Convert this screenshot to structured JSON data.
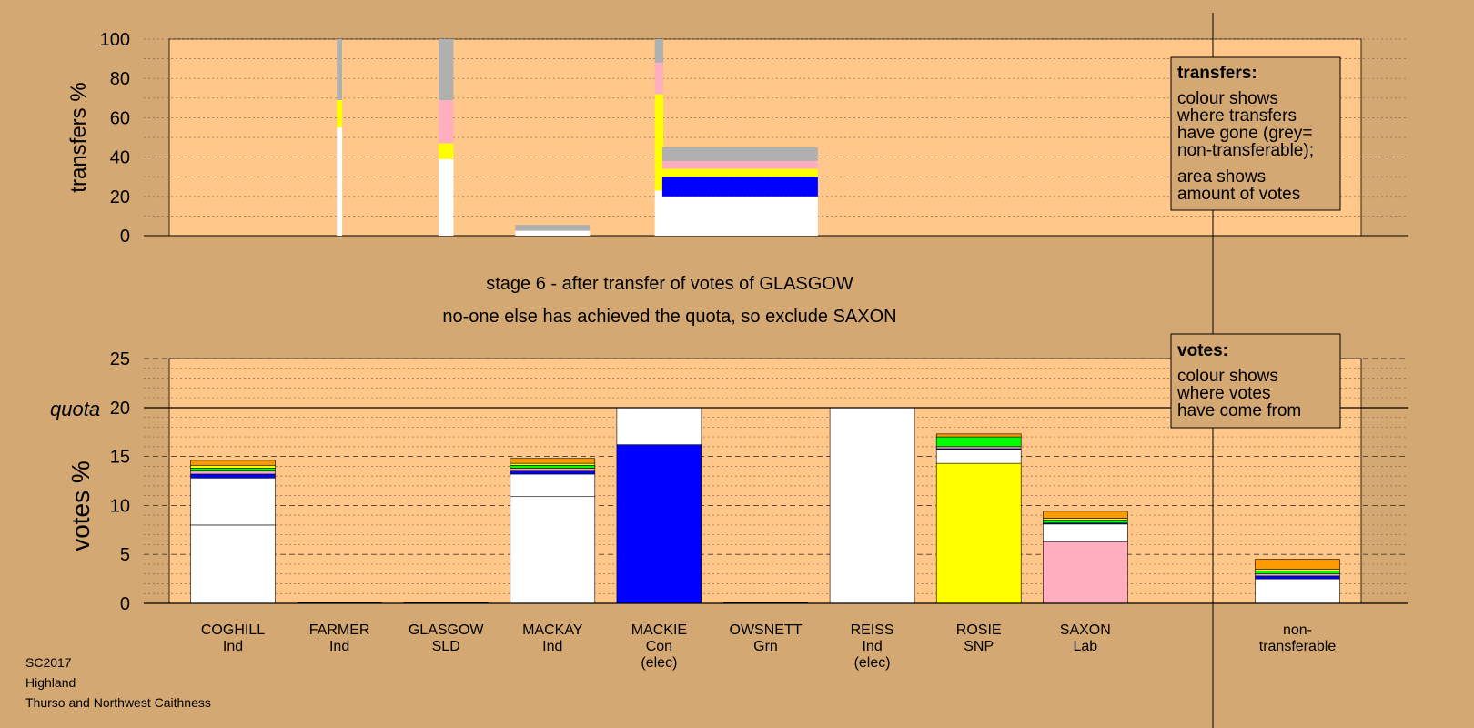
{
  "caption": {
    "line1": "stage 6 - after transfer of votes of GLASGOW",
    "line2": "no-one else has achieved the quota, so exclude SAXON"
  },
  "footer": {
    "line1": "SC2017",
    "line2": "Highland",
    "line3": "Thurso and Northwest Caithness"
  },
  "legend_transfers": {
    "title": "transfers:",
    "lines": [
      "colour shows",
      "where transfers",
      "have gone (grey=",
      "non-transferable);",
      "area shows",
      "amount of votes"
    ]
  },
  "legend_votes": {
    "title": "votes:",
    "lines": [
      "colour shows",
      "where votes",
      "have come from"
    ]
  },
  "colors": {
    "background": "#d4a873",
    "plot_background": "#ffc88a",
    "Ind": "#ffffff",
    "Con": "#0000ff",
    "SNP": "#ffff00",
    "Lab": "#ffaec0",
    "Grn": "#00ff00",
    "SLD": "#ff9900",
    "nontransferable": "#b0b0b0"
  },
  "chart_data": [
    {
      "type": "bar",
      "id": "transfers",
      "ylabel": "transfers %",
      "ylim": [
        0,
        100
      ],
      "yticks": [
        0,
        20,
        40,
        60,
        80,
        100
      ],
      "grid": true,
      "columns": [
        {
          "name": "COGHILL",
          "center": 1,
          "width": 0.05,
          "segments": [
            {
              "party": "Ind",
              "value": 55
            },
            {
              "party": "SNP",
              "value": 14
            },
            {
              "party": "nontransferable",
              "value": 31
            }
          ]
        },
        {
          "name": "FARMER",
          "center": 2,
          "width": 0.14,
          "segments": [
            {
              "party": "Ind",
              "value": 39
            },
            {
              "party": "SNP",
              "value": 8
            },
            {
              "party": "Lab",
              "value": 22
            },
            {
              "party": "nontransferable",
              "value": 31
            }
          ]
        },
        {
          "name": "GLASGOW",
          "center": 3,
          "width": 0.7,
          "segments": [
            {
              "party": "Ind",
              "value": 2.5
            },
            {
              "party": "nontransferable",
              "value": 3
            }
          ]
        },
        {
          "name": "MACKAY",
          "center": 4,
          "width": 0.08,
          "segments": [
            {
              "party": "Ind",
              "value": 23
            },
            {
              "party": "SNP",
              "value": 49
            },
            {
              "party": "Lab",
              "value": 16
            },
            {
              "party": "nontransferable",
              "value": 12
            }
          ]
        },
        {
          "name": "MACKIE",
          "center": 4.76,
          "width": 1.46,
          "segments": [
            {
              "party": "Ind",
              "value": 20
            },
            {
              "party": "Con",
              "value": 10
            },
            {
              "party": "SNP",
              "value": 4
            },
            {
              "party": "Lab",
              "value": 4
            },
            {
              "party": "nontransferable",
              "value": 7
            }
          ]
        }
      ]
    },
    {
      "type": "bar",
      "id": "votes",
      "ylabel": "votes %",
      "ylim": [
        0,
        25
      ],
      "yticks": [
        0,
        5,
        10,
        15,
        20,
        25
      ],
      "quota": 20,
      "quota_label": "quota",
      "grid": true,
      "categories": [
        {
          "name": "COGHILL",
          "party": "Ind",
          "elec": ""
        },
        {
          "name": "FARMER",
          "party": "Ind",
          "elec": ""
        },
        {
          "name": "GLASGOW",
          "party": "SLD",
          "elec": ""
        },
        {
          "name": "MACKAY",
          "party": "Ind",
          "elec": ""
        },
        {
          "name": "MACKIE",
          "party": "Con",
          "elec": "(elec)"
        },
        {
          "name": "OWSNETT",
          "party": "Grn",
          "elec": ""
        },
        {
          "name": "REISS",
          "party": "Ind",
          "elec": "(elec)"
        },
        {
          "name": "ROSIE",
          "party": "SNP",
          "elec": ""
        },
        {
          "name": "SAXON",
          "party": "Lab",
          "elec": ""
        },
        {
          "name": "non-",
          "party": "transferable",
          "elec": ""
        }
      ],
      "bars": [
        {
          "index": 0,
          "segments": [
            {
              "party": "Ind",
              "value": 8
            },
            {
              "party": "Ind",
              "value": 4.8
            },
            {
              "party": "Con",
              "value": 0.4
            },
            {
              "party": "Lab",
              "value": 0.3
            },
            {
              "party": "Grn",
              "value": 0.3
            },
            {
              "party": "SNP",
              "value": 0.3
            },
            {
              "party": "SLD",
              "value": 0.5
            }
          ]
        },
        {
          "index": 1,
          "segments": []
        },
        {
          "index": 2,
          "segments": []
        },
        {
          "index": 3,
          "segments": [
            {
              "party": "Ind",
              "value": 10.9
            },
            {
              "party": "Ind",
              "value": 2.3
            },
            {
              "party": "Con",
              "value": 0.3
            },
            {
              "party": "Lab",
              "value": 0.3
            },
            {
              "party": "Grn",
              "value": 0.3
            },
            {
              "party": "SNP",
              "value": 0.2
            },
            {
              "party": "SLD",
              "value": 0.5
            }
          ]
        },
        {
          "index": 4,
          "segments": [
            {
              "party": "Con",
              "value": 16.2
            },
            {
              "party": "Ind",
              "value": 3.8
            }
          ]
        },
        {
          "index": 5,
          "segments": []
        },
        {
          "index": 6,
          "segments": [
            {
              "party": "Ind",
              "value": 20
            }
          ]
        },
        {
          "index": 7,
          "segments": [
            {
              "party": "SNP",
              "value": 14.3
            },
            {
              "party": "Ind",
              "value": 1.4
            },
            {
              "party": "Con",
              "value": 0.1
            },
            {
              "party": "Lab",
              "value": 0.2
            },
            {
              "party": "Grn",
              "value": 1
            },
            {
              "party": "SLD",
              "value": 0.3
            }
          ]
        },
        {
          "index": 8,
          "segments": [
            {
              "party": "Lab",
              "value": 6.3
            },
            {
              "party": "Ind",
              "value": 1.8
            },
            {
              "party": "Con",
              "value": 0.1
            },
            {
              "party": "Grn",
              "value": 0.3
            },
            {
              "party": "SNP",
              "value": 0.2
            },
            {
              "party": "SLD",
              "value": 0.7
            }
          ]
        },
        {
          "index": 9,
          "segments": [
            {
              "party": "Ind",
              "value": 2.5
            },
            {
              "party": "Con",
              "value": 0.3
            },
            {
              "party": "Lab",
              "value": 0.2
            },
            {
              "party": "Grn",
              "value": 0.3
            },
            {
              "party": "SNP",
              "value": 0.2
            },
            {
              "party": "SLD",
              "value": 1
            }
          ]
        }
      ]
    }
  ]
}
